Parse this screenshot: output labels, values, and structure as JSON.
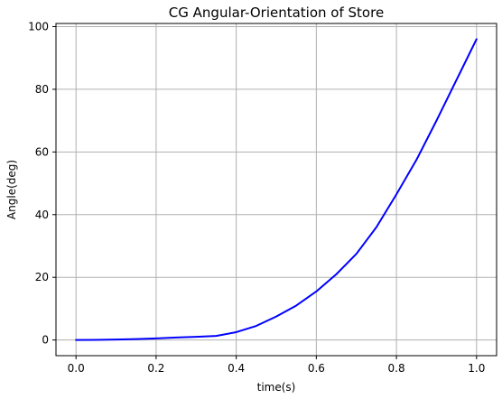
{
  "chart_data": {
    "type": "line",
    "title": "CG Angular-Orientation of Store",
    "xlabel": "time(s)",
    "ylabel": "Angle(deg)",
    "xlim": [
      -0.05,
      1.05
    ],
    "ylim": [
      -5,
      101
    ],
    "xticks": [
      0.0,
      0.2,
      0.4,
      0.6,
      0.8,
      1.0
    ],
    "xtick_labels": [
      "0.0",
      "0.2",
      "0.4",
      "0.6",
      "0.8",
      "1.0"
    ],
    "yticks": [
      0,
      20,
      40,
      60,
      80,
      100
    ],
    "ytick_labels": [
      "0",
      "20",
      "40",
      "60",
      "80",
      "100"
    ],
    "grid": true,
    "series": [
      {
        "color": "#0000ff",
        "x": [
          0.0,
          0.05,
          0.1,
          0.15,
          0.2,
          0.25,
          0.3,
          0.35,
          0.4,
          0.45,
          0.5,
          0.55,
          0.6,
          0.65,
          0.7,
          0.75,
          0.8,
          0.85,
          0.9,
          0.95,
          1.0
        ],
        "y": [
          0.0,
          0.05,
          0.15,
          0.3,
          0.5,
          0.8,
          1.0,
          1.3,
          2.5,
          4.5,
          7.5,
          11.0,
          15.5,
          21.0,
          27.5,
          36.0,
          46.5,
          57.5,
          70.0,
          83.0,
          96.0
        ]
      }
    ]
  }
}
